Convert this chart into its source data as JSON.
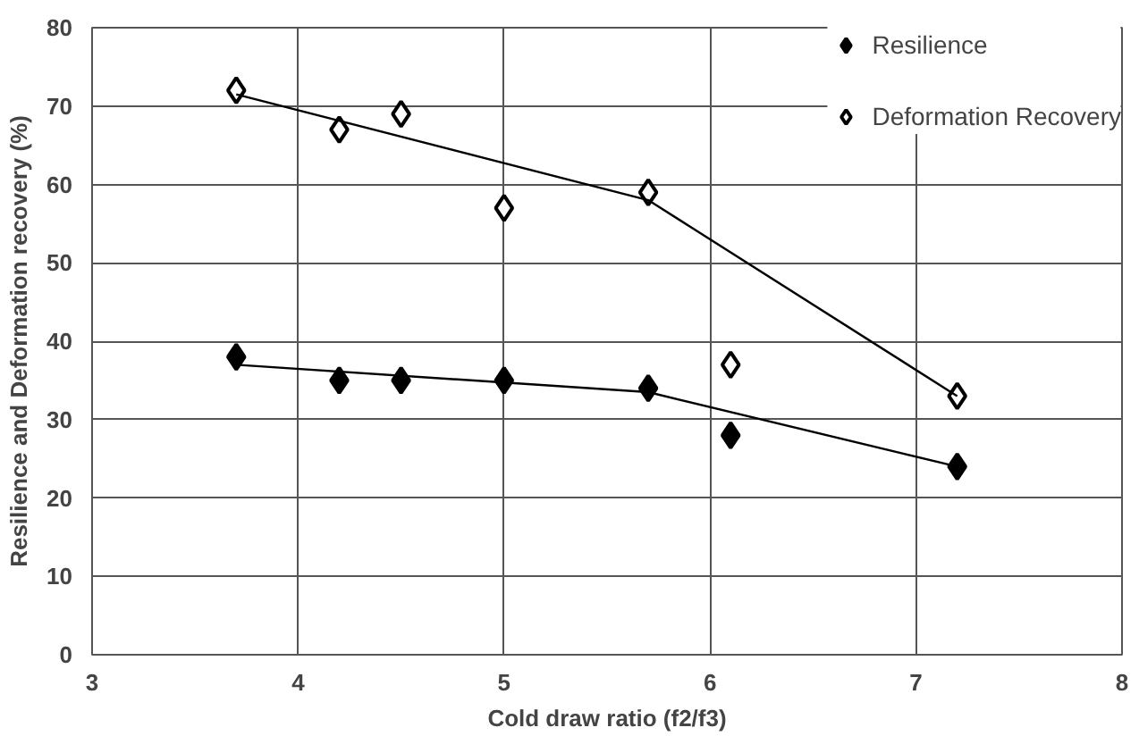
{
  "chart_data": {
    "type": "scatter",
    "xlabel": "Cold draw ratio (f2/f3)",
    "ylabel": "Resilience and Deformation recovery (%)",
    "xlim": [
      3,
      8
    ],
    "xticks": [
      3,
      4,
      5,
      6,
      7,
      8
    ],
    "ylim": [
      0,
      80
    ],
    "yticks": [
      0,
      10,
      20,
      30,
      40,
      50,
      60,
      70,
      80
    ],
    "grid": true,
    "legend": "top right",
    "series": [
      {
        "name": "Resilience",
        "color": "#000000",
        "marker": "diamond",
        "x": [
          3.7,
          4.2,
          4.5,
          5.0,
          5.7,
          6.1,
          7.2
        ],
        "values": [
          38,
          35,
          35,
          35,
          34,
          28,
          24
        ]
      },
      {
        "name": "Deformation Recovery",
        "color": "#ffffff",
        "marker": "diamond",
        "x": [
          3.7,
          4.2,
          4.5,
          5.0,
          5.7,
          6.1,
          7.2
        ],
        "values": [
          72,
          67,
          69,
          57,
          59,
          37,
          33
        ]
      },
      {
        "type": "line",
        "color": "#000000",
        "x": [
          3.7,
          5.7,
          7.2
        ],
        "values": [
          37,
          33.5,
          24
        ]
      },
      {
        "type": "line",
        "color": "#000000",
        "x": [
          3.7,
          5.7,
          7.2
        ],
        "values": [
          71.5,
          58,
          33
        ]
      }
    ]
  }
}
